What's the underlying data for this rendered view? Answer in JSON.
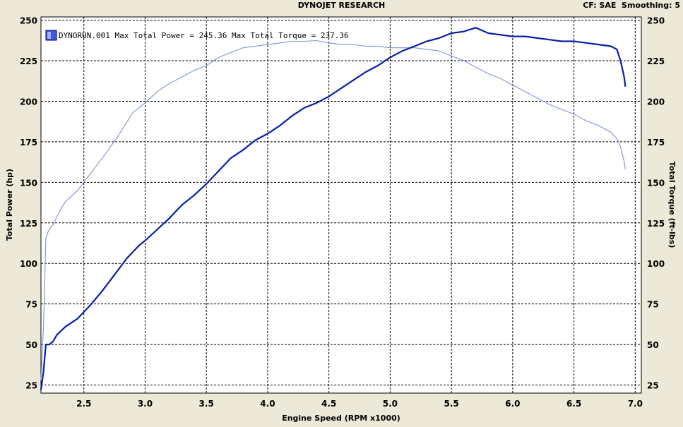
{
  "header": {
    "title": "DYNOJET RESEARCH",
    "right_info": "CF: SAE  Smoothing: 5"
  },
  "chart_data": {
    "type": "line",
    "title": "",
    "xlabel": "Engine Speed (RPM x1000)",
    "ylabel_left": "Total Power (hp)",
    "ylabel_right": "Total Torque (ft-lbs)",
    "xlim": [
      2.15,
      7.05
    ],
    "ylim": [
      20,
      252
    ],
    "x_ticks": [
      2.5,
      3.0,
      3.5,
      4.0,
      4.5,
      5.0,
      5.5,
      6.0,
      6.5,
      7.0
    ],
    "x_tick_labels": [
      "2.5",
      "3.0",
      "3.5",
      "4.0",
      "4.5",
      "5.0",
      "5.5",
      "6.0",
      "6.5",
      "7.0"
    ],
    "y_ticks": [
      25,
      50,
      75,
      100,
      125,
      150,
      175,
      200,
      225,
      250
    ],
    "y_tick_labels": [
      "25",
      "50",
      "75",
      "100",
      "125",
      "150",
      "175",
      "200",
      "225",
      "250"
    ],
    "grid": true,
    "legend": {
      "position": "top-left",
      "text": "DYNORUN.001 Max Total Power = 245.36 Max Total Torque = 237.36"
    },
    "series": [
      {
        "role": "power",
        "color": "#0a1fa8",
        "points": [
          [
            2.15,
            22
          ],
          [
            2.17,
            33
          ],
          [
            2.19,
            50
          ],
          [
            2.22,
            50
          ],
          [
            2.25,
            52
          ],
          [
            2.28,
            56
          ],
          [
            2.35,
            61
          ],
          [
            2.45,
            66
          ],
          [
            2.55,
            74
          ],
          [
            2.65,
            83
          ],
          [
            2.75,
            93
          ],
          [
            2.85,
            103
          ],
          [
            2.95,
            111
          ],
          [
            3.0,
            114
          ],
          [
            3.1,
            121
          ],
          [
            3.2,
            128
          ],
          [
            3.3,
            136
          ],
          [
            3.4,
            142
          ],
          [
            3.5,
            149
          ],
          [
            3.6,
            157
          ],
          [
            3.7,
            165
          ],
          [
            3.8,
            170
          ],
          [
            3.9,
            176
          ],
          [
            4.0,
            180
          ],
          [
            4.1,
            185
          ],
          [
            4.2,
            191
          ],
          [
            4.3,
            196
          ],
          [
            4.4,
            199
          ],
          [
            4.5,
            203
          ],
          [
            4.6,
            208
          ],
          [
            4.7,
            213
          ],
          [
            4.8,
            218
          ],
          [
            4.9,
            222
          ],
          [
            5.0,
            227
          ],
          [
            5.1,
            231
          ],
          [
            5.2,
            234
          ],
          [
            5.3,
            237
          ],
          [
            5.4,
            239
          ],
          [
            5.5,
            242
          ],
          [
            5.6,
            243
          ],
          [
            5.7,
            245.4
          ],
          [
            5.8,
            242
          ],
          [
            5.9,
            241
          ],
          [
            6.0,
            240
          ],
          [
            6.1,
            240
          ],
          [
            6.2,
            239
          ],
          [
            6.3,
            238
          ],
          [
            6.4,
            237
          ],
          [
            6.5,
            237
          ],
          [
            6.6,
            236
          ],
          [
            6.7,
            235
          ],
          [
            6.8,
            234
          ],
          [
            6.85,
            232
          ],
          [
            6.88,
            225
          ],
          [
            6.91,
            215
          ],
          [
            6.92,
            209
          ]
        ]
      },
      {
        "role": "torque",
        "color": "#8090d8",
        "points": [
          [
            2.15,
            28
          ],
          [
            2.17,
            60
          ],
          [
            2.19,
            115
          ],
          [
            2.21,
            120
          ],
          [
            2.25,
            124
          ],
          [
            2.3,
            132
          ],
          [
            2.35,
            138
          ],
          [
            2.45,
            145
          ],
          [
            2.5,
            150
          ],
          [
            2.6,
            160
          ],
          [
            2.7,
            170
          ],
          [
            2.8,
            181
          ],
          [
            2.9,
            193
          ],
          [
            3.0,
            199
          ],
          [
            3.1,
            206
          ],
          [
            3.2,
            211
          ],
          [
            3.3,
            215
          ],
          [
            3.4,
            219
          ],
          [
            3.5,
            222
          ],
          [
            3.6,
            227
          ],
          [
            3.7,
            230
          ],
          [
            3.8,
            233
          ],
          [
            3.9,
            234
          ],
          [
            4.0,
            235
          ],
          [
            4.1,
            236
          ],
          [
            4.2,
            237
          ],
          [
            4.3,
            237
          ],
          [
            4.4,
            237.4
          ],
          [
            4.5,
            236
          ],
          [
            4.6,
            235
          ],
          [
            4.7,
            235
          ],
          [
            4.8,
            234
          ],
          [
            4.9,
            234
          ],
          [
            5.0,
            233
          ],
          [
            5.1,
            233
          ],
          [
            5.2,
            233
          ],
          [
            5.3,
            232
          ],
          [
            5.4,
            231
          ],
          [
            5.5,
            228
          ],
          [
            5.6,
            225
          ],
          [
            5.7,
            221
          ],
          [
            5.8,
            217
          ],
          [
            5.9,
            214
          ],
          [
            6.0,
            210
          ],
          [
            6.1,
            206
          ],
          [
            6.2,
            202
          ],
          [
            6.3,
            198
          ],
          [
            6.4,
            195
          ],
          [
            6.5,
            192
          ],
          [
            6.6,
            188
          ],
          [
            6.7,
            185
          ],
          [
            6.8,
            181
          ],
          [
            6.85,
            177
          ],
          [
            6.88,
            172
          ],
          [
            6.91,
            163
          ],
          [
            6.92,
            158
          ]
        ]
      }
    ]
  }
}
